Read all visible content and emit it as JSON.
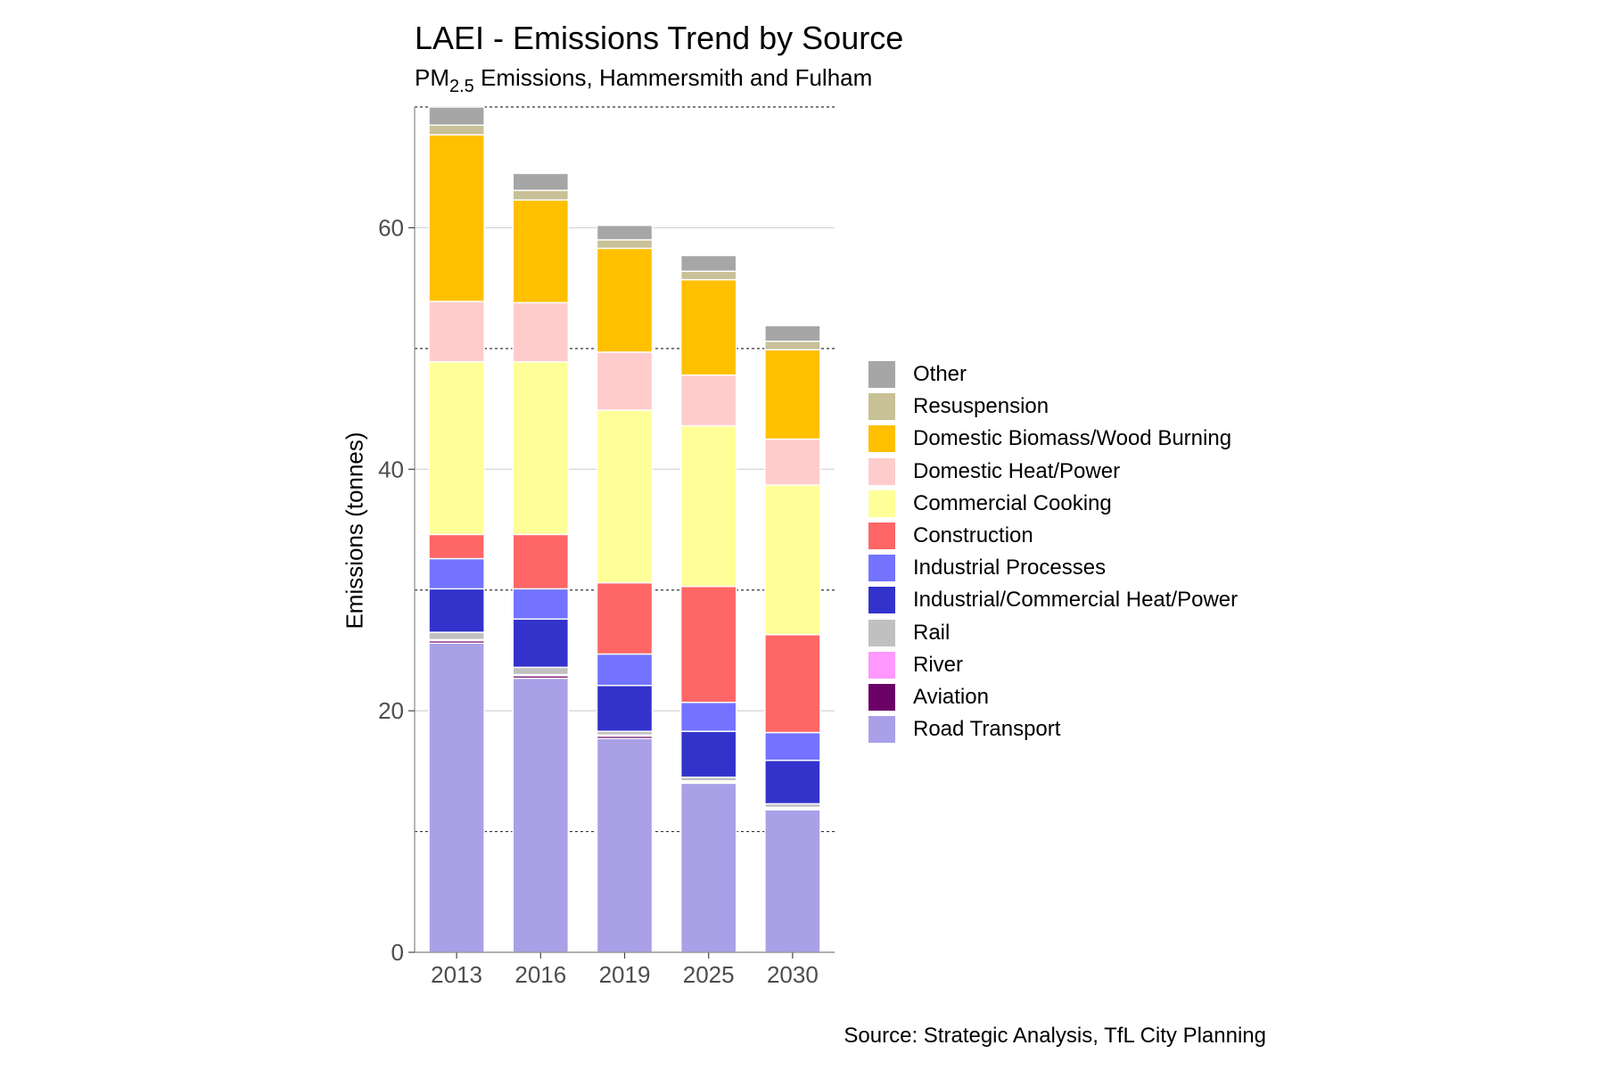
{
  "title": "LAEI - Emissions Trend by Source",
  "subtitle": {
    "prefix": "PM",
    "subscript": "2.5",
    "rest": " Emissions, Hammersmith and Fulham"
  },
  "caption": "Source: Strategic Analysis, TfL City Planning",
  "chart_data": {
    "type": "bar",
    "stacked": true,
    "categories": [
      "2013",
      "2016",
      "2019",
      "2025",
      "2030"
    ],
    "ylabel": "Emissions (tonnes)",
    "xlabel": "",
    "ylim": [
      0,
      70
    ],
    "yticks": [
      0,
      20,
      40,
      60
    ],
    "dashed_gridlines": [
      10,
      30,
      50,
      70
    ],
    "legend_position": "right",
    "series": [
      {
        "name": "Road Transport",
        "color": "#a9a0e8",
        "values": [
          25.6,
          22.7,
          17.7,
          14.0,
          11.8
        ]
      },
      {
        "name": "Aviation",
        "color": "#6b0066",
        "values": [
          0.2,
          0.2,
          0.2,
          0.1,
          0.1
        ]
      },
      {
        "name": "River",
        "color": "#ff99ff",
        "values": [
          0.1,
          0.1,
          0.1,
          0.1,
          0.1
        ]
      },
      {
        "name": "Rail",
        "color": "#c0c0c0",
        "values": [
          0.6,
          0.6,
          0.3,
          0.3,
          0.3
        ]
      },
      {
        "name": "Industrial/Commercial Heat/Power",
        "color": "#3333cc",
        "values": [
          3.6,
          4.0,
          3.8,
          3.8,
          3.6
        ]
      },
      {
        "name": "Industrial Processes",
        "color": "#7373ff",
        "values": [
          2.5,
          2.5,
          2.6,
          2.4,
          2.3
        ]
      },
      {
        "name": "Construction",
        "color": "#ff6666",
        "values": [
          2.0,
          4.5,
          5.9,
          9.6,
          8.1
        ]
      },
      {
        "name": "Commercial Cooking",
        "color": "#ffff99",
        "values": [
          14.3,
          14.3,
          14.3,
          13.3,
          12.4
        ]
      },
      {
        "name": "Domestic Heat/Power",
        "color": "#ffcccc",
        "values": [
          5.0,
          4.9,
          4.8,
          4.2,
          3.8
        ]
      },
      {
        "name": "Domestic Biomass/Wood Burning",
        "color": "#ffc000",
        "values": [
          13.8,
          8.5,
          8.6,
          7.9,
          7.4
        ]
      },
      {
        "name": "Resuspension",
        "color": "#c8c096",
        "values": [
          0.8,
          0.8,
          0.7,
          0.7,
          0.7
        ]
      },
      {
        "name": "Other",
        "color": "#a6a6a6",
        "values": [
          1.5,
          1.4,
          1.2,
          1.3,
          1.3
        ]
      }
    ]
  }
}
